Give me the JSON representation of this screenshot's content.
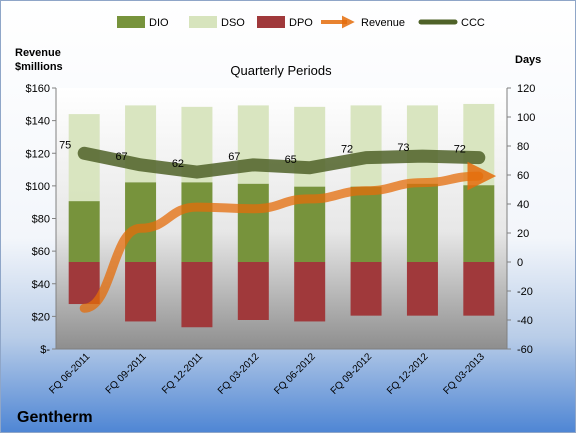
{
  "company": "Gentherm",
  "chart_data": {
    "type": "bar",
    "title": "Quarterly Periods",
    "y_left_label_line1": "Revenue",
    "y_left_label_line2": "$millions",
    "y_right_label": "Days",
    "categories": [
      "FQ 06-2011",
      "FQ 09-2011",
      "FQ 12-2011",
      "FQ 03-2012",
      "FQ 06-2012",
      "FQ 09-2012",
      "FQ 12-2012",
      "FQ 03-2013"
    ],
    "series": [
      {
        "name": "DIO",
        "type": "stacked-bar",
        "axis": "right",
        "color": "#77933c",
        "values": [
          42,
          55,
          55,
          54,
          52,
          52,
          54,
          53
        ]
      },
      {
        "name": "DSO",
        "type": "stacked-bar",
        "axis": "right",
        "color": "#d7e4bd",
        "values": [
          60,
          53,
          52,
          54,
          55,
          56,
          54,
          56
        ]
      },
      {
        "name": "DPO",
        "type": "negative-bar",
        "axis": "right",
        "color": "#a0393b",
        "values": [
          -29,
          -41,
          -45,
          -40,
          -41,
          -37,
          -37,
          -37
        ]
      },
      {
        "name": "Revenue",
        "type": "line",
        "axis": "left",
        "color": "#e46c0a",
        "values": [
          25,
          74,
          87,
          86,
          92,
          97,
          102,
          106
        ]
      },
      {
        "name": "CCC",
        "type": "line",
        "axis": "right",
        "color": "#4f6228",
        "values": [
          75,
          67,
          62,
          67,
          65,
          72,
          73,
          72
        ]
      }
    ],
    "ccc_labels": [
      "75",
      "67",
      "62",
      "67",
      "65",
      "72",
      "73",
      "72"
    ],
    "left_axis": {
      "ylim": [
        0,
        160
      ],
      "ticks": [
        "$-",
        "$20",
        "$40",
        "$60",
        "$80",
        "$100",
        "$120",
        "$140",
        "$160"
      ]
    },
    "right_axis": {
      "ylim": [
        -60,
        120
      ],
      "ticks": [
        "-60",
        "-40",
        "-20",
        "0",
        "20",
        "40",
        "60",
        "80",
        "100",
        "120"
      ]
    },
    "legend_position": "top",
    "grid": false
  }
}
